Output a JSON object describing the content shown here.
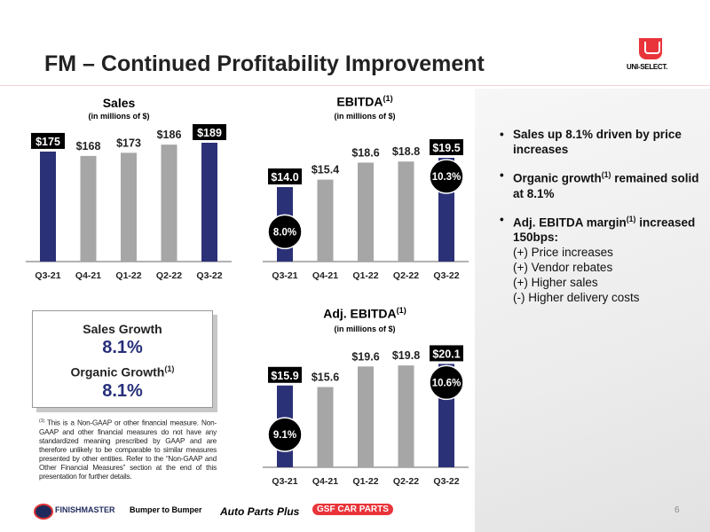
{
  "title": "FM – Continued Profitability Improvement",
  "logo": "UNI-SELECT.",
  "colors": {
    "highlight": "#2b3176",
    "other": "#a6a6a6",
    "logo_red": "#e8343a"
  },
  "chart_data": [
    {
      "type": "bar",
      "title": "Sales",
      "subtitle": "(in millions of $)",
      "categories": [
        "Q3-21",
        "Q4-21",
        "Q1-22",
        "Q2-22",
        "Q3-22"
      ],
      "values": [
        175,
        168,
        173,
        186,
        189
      ],
      "labels": [
        "$175",
        "$168",
        "$173",
        "$186",
        "$189"
      ],
      "highlighted": [
        true,
        false,
        false,
        false,
        true
      ]
    },
    {
      "type": "bar",
      "title": "EBITDA",
      "title_sup": "(1)",
      "subtitle": "(in millions of $)",
      "categories": [
        "Q3-21",
        "Q4-21",
        "Q1-22",
        "Q2-22",
        "Q3-22"
      ],
      "values": [
        14.0,
        15.4,
        18.6,
        18.8,
        19.5
      ],
      "labels": [
        "$14.0",
        "$15.4",
        "$18.6",
        "$18.8",
        "$19.5"
      ],
      "highlighted": [
        true,
        false,
        false,
        false,
        true
      ],
      "margins": [
        {
          "index": 0,
          "label": "8.0%"
        },
        {
          "index": 4,
          "label": "10.3%"
        }
      ]
    },
    {
      "type": "bar",
      "title": "Adj. EBITDA",
      "title_sup": "(1)",
      "subtitle": "(in millions of $)",
      "categories": [
        "Q3-21",
        "Q4-21",
        "Q1-22",
        "Q2-22",
        "Q3-22"
      ],
      "values": [
        15.9,
        15.6,
        19.6,
        19.8,
        20.1
      ],
      "labels": [
        "$15.9",
        "$15.6",
        "$19.6",
        "$19.8",
        "$20.1"
      ],
      "highlighted": [
        true,
        false,
        false,
        false,
        true
      ],
      "margins": [
        {
          "index": 0,
          "label": "9.1%"
        },
        {
          "index": 4,
          "label": "10.6%"
        }
      ]
    }
  ],
  "growth": {
    "sales_label": "Sales Growth",
    "sales_value": "8.1%",
    "organic_label": "Organic Growth",
    "organic_sup": "(1)",
    "organic_value": "8.1%"
  },
  "bullets": {
    "b1": "Sales up 8.1% driven by price increases",
    "b2a": "Organic growth",
    "b2sup": "(1)",
    "b2b": " remained solid at 8.1%",
    "b3a": "Adj. EBITDA margin",
    "b3sup": "(1)",
    "b3b": " increased 150bps:",
    "subs": [
      "(+) Price increases",
      "(+) Vendor rebates",
      "(+) Higher sales",
      "(-)  Higher delivery costs"
    ]
  },
  "footnote": {
    "sup": "(1)",
    "text": " This is a Non-GAAP or other financial measure. Non-GAAP and other financial measures do not have any standardized meaning prescribed by GAAP and are therefore unlikely to be comparable to similar measures presented by other entities. Refer to the “Non-GAAP and Other Financial Measures” section at the end of this presentation for further details."
  },
  "brands": [
    "FINISHMASTER",
    "Bumper to Bumper",
    "Auto Parts Plus",
    "GSF CAR PARTS"
  ],
  "page_number": "6"
}
